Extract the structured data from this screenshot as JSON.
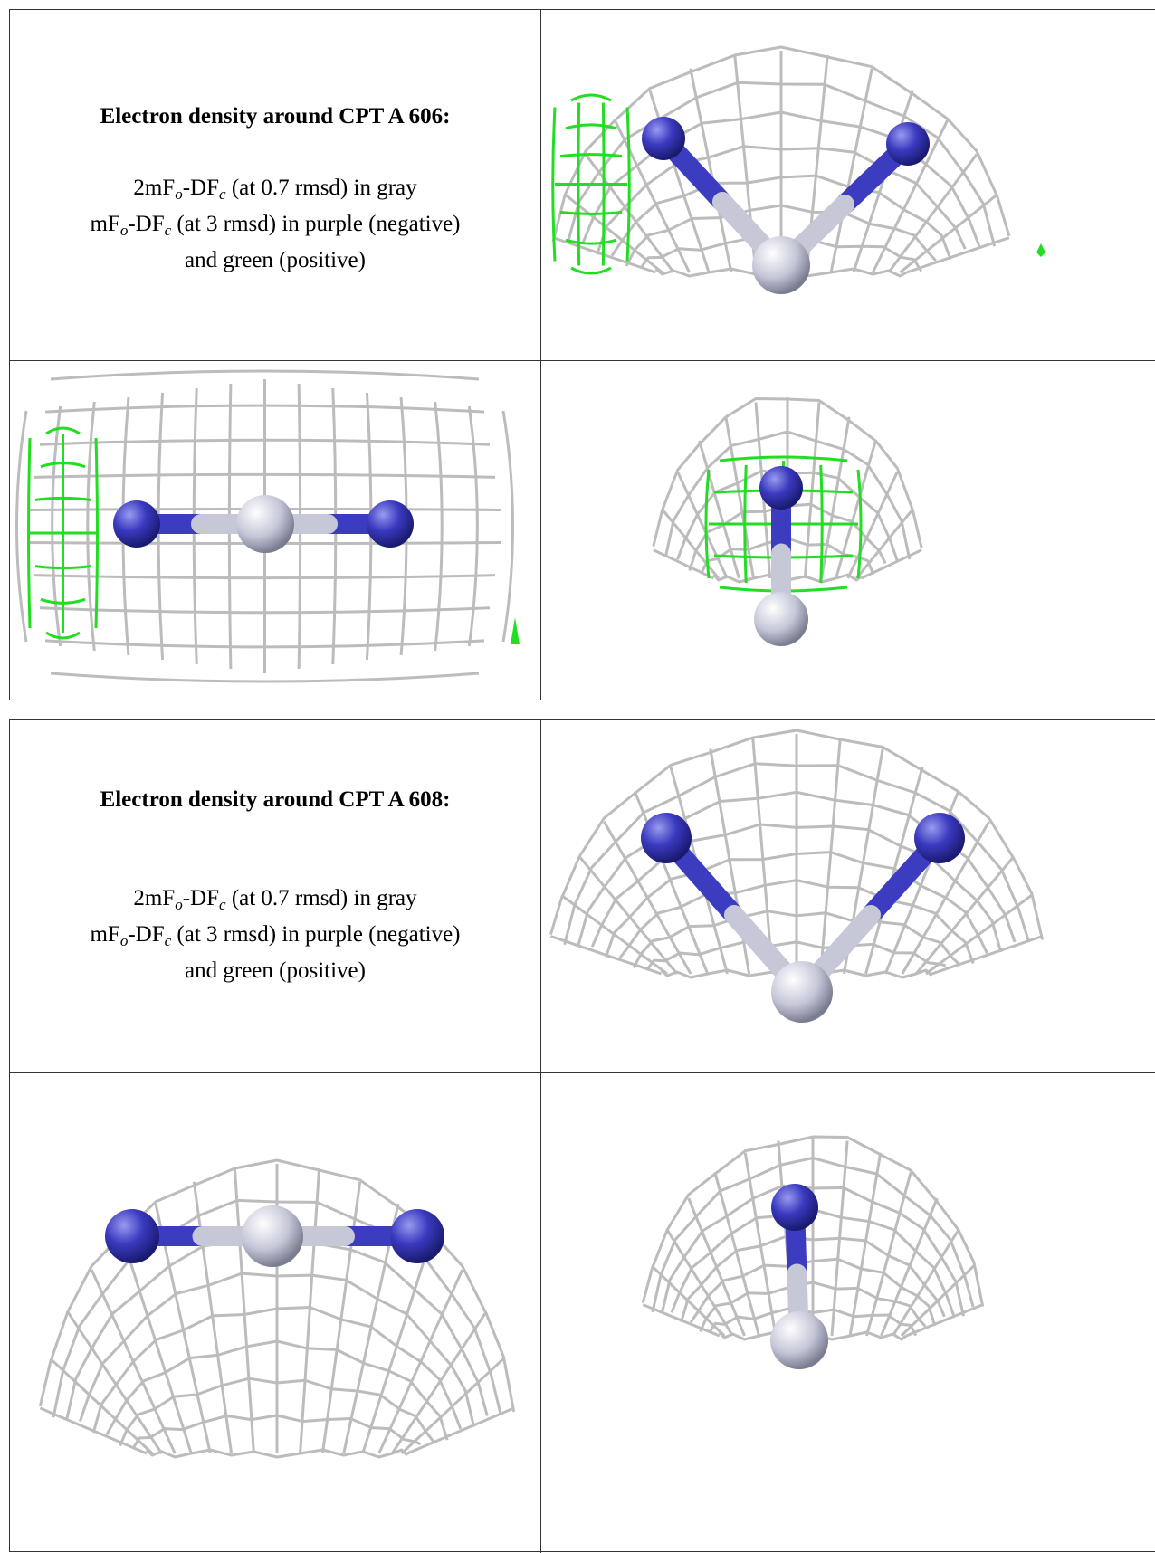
{
  "blocks": [
    {
      "title": "Electron density around CPT A 606:",
      "line1": [
        "2mF",
        "o",
        "-DF",
        "c",
        " (at 0.7 rmsd) in gray"
      ],
      "line2": [
        "mF",
        "o",
        "-DF",
        "c",
        " (at 3 rmsd) in purple (negative)"
      ],
      "line3": "and green (positive)"
    },
    {
      "title": "Electron density around CPT A 608:",
      "line1": [
        "2mF",
        "o",
        "-DF",
        "c",
        " (at 0.7 rmsd) in gray"
      ],
      "line2": [
        "mF",
        "o",
        "-DF",
        "c",
        " (at 3 rmsd) in purple (negative)"
      ],
      "line3": "and green (positive)"
    }
  ]
}
